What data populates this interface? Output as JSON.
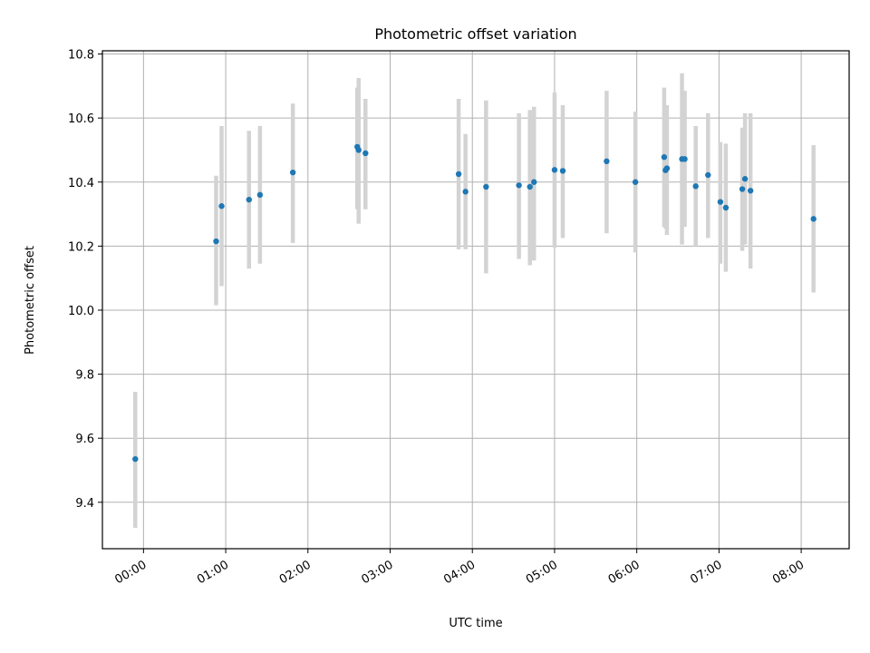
{
  "chart_data": {
    "type": "scatter",
    "title": "Photometric offset variation",
    "xlabel": "UTC time",
    "ylabel": "Photometric offset",
    "x_tick_labels": [
      "00:00",
      "01:00",
      "02:00",
      "03:00",
      "04:00",
      "05:00",
      "06:00",
      "07:00",
      "08:00"
    ],
    "y_tick_labels": [
      "9.4",
      "9.6",
      "9.8",
      "10.0",
      "10.2",
      "10.4",
      "10.6",
      "10.8"
    ],
    "xlim": [
      "-00:30",
      "08:35"
    ],
    "ylim": [
      9.255,
      10.81
    ],
    "grid": true,
    "colors": {
      "point": "#1f77b4",
      "errorbar": "#d3d3d3"
    },
    "series": [
      {
        "points": [
          {
            "x": "23:54",
            "y": 9.535,
            "yerr_low": 9.32,
            "yerr_high": 9.745
          },
          {
            "x": "00:53",
            "y": 10.215,
            "yerr_low": 10.015,
            "yerr_high": 10.42
          },
          {
            "x": "00:57",
            "y": 10.325,
            "yerr_low": 10.075,
            "yerr_high": 10.575
          },
          {
            "x": "01:17",
            "y": 10.345,
            "yerr_low": 10.13,
            "yerr_high": 10.56
          },
          {
            "x": "01:25",
            "y": 10.36,
            "yerr_low": 10.145,
            "yerr_high": 10.575
          },
          {
            "x": "01:49",
            "y": 10.43,
            "yerr_low": 10.21,
            "yerr_high": 10.645
          },
          {
            "x": "02:36",
            "y": 10.51,
            "yerr_low": 10.315,
            "yerr_high": 10.695
          },
          {
            "x": "02:37",
            "y": 10.5,
            "yerr_low": 10.27,
            "yerr_high": 10.725
          },
          {
            "x": "02:42",
            "y": 10.49,
            "yerr_low": 10.315,
            "yerr_high": 10.66
          },
          {
            "x": "03:50",
            "y": 10.425,
            "yerr_low": 10.19,
            "yerr_high": 10.66
          },
          {
            "x": "03:55",
            "y": 10.37,
            "yerr_low": 10.19,
            "yerr_high": 10.55
          },
          {
            "x": "04:10",
            "y": 10.385,
            "yerr_low": 10.115,
            "yerr_high": 10.655
          },
          {
            "x": "04:34",
            "y": 10.39,
            "yerr_low": 10.16,
            "yerr_high": 10.615
          },
          {
            "x": "04:42",
            "y": 10.385,
            "yerr_low": 10.14,
            "yerr_high": 10.625
          },
          {
            "x": "04:45",
            "y": 10.4,
            "yerr_low": 10.155,
            "yerr_high": 10.635
          },
          {
            "x": "05:00",
            "y": 10.438,
            "yerr_low": 10.195,
            "yerr_high": 10.68
          },
          {
            "x": "05:06",
            "y": 10.435,
            "yerr_low": 10.225,
            "yerr_high": 10.64
          },
          {
            "x": "05:38",
            "y": 10.465,
            "yerr_low": 10.24,
            "yerr_high": 10.685
          },
          {
            "x": "05:59",
            "y": 10.4,
            "yerr_low": 10.18,
            "yerr_high": 10.62
          },
          {
            "x": "06:20",
            "y": 10.478,
            "yerr_low": 10.26,
            "yerr_high": 10.695
          },
          {
            "x": "06:21",
            "y": 10.437,
            "yerr_low": 10.255,
            "yerr_high": 10.61
          },
          {
            "x": "06:22",
            "y": 10.443,
            "yerr_low": 10.235,
            "yerr_high": 10.64
          },
          {
            "x": "06:33",
            "y": 10.472,
            "yerr_low": 10.205,
            "yerr_high": 10.74
          },
          {
            "x": "06:35",
            "y": 10.472,
            "yerr_low": 10.26,
            "yerr_high": 10.685
          },
          {
            "x": "06:43",
            "y": 10.387,
            "yerr_low": 10.2,
            "yerr_high": 10.575
          },
          {
            "x": "06:52",
            "y": 10.422,
            "yerr_low": 10.225,
            "yerr_high": 10.615
          },
          {
            "x": "07:01",
            "y": 10.338,
            "yerr_low": 10.145,
            "yerr_high": 10.525
          },
          {
            "x": "07:05",
            "y": 10.32,
            "yerr_low": 10.12,
            "yerr_high": 10.52
          },
          {
            "x": "07:17",
            "y": 10.378,
            "yerr_low": 10.185,
            "yerr_high": 10.57
          },
          {
            "x": "07:19",
            "y": 10.41,
            "yerr_low": 10.205,
            "yerr_high": 10.615
          },
          {
            "x": "07:23",
            "y": 10.373,
            "yerr_low": 10.13,
            "yerr_high": 10.615
          },
          {
            "x": "08:09",
            "y": 10.285,
            "yerr_low": 10.055,
            "yerr_high": 10.515
          }
        ]
      }
    ]
  }
}
